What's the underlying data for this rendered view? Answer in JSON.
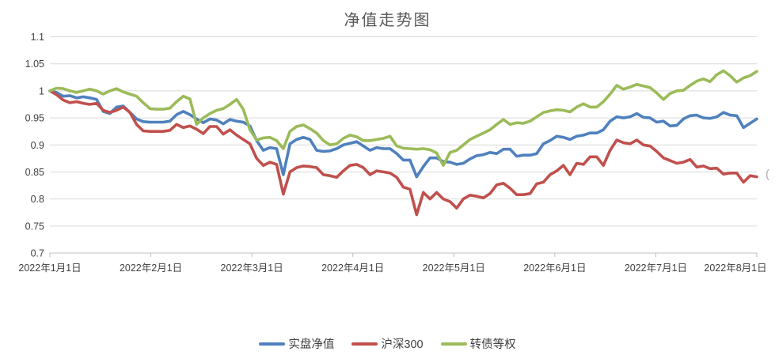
{
  "title": "净值走势图",
  "edge_artifact": "(",
  "colors": {
    "background": "#FFFFFF",
    "title_text": "#595959",
    "axis_text": "#404040",
    "gridline": "#D9D9D9",
    "axis_line": "#BFBFBF",
    "series_blue": "#4F81BD",
    "series_red": "#C0504D",
    "series_green": "#9BBB59"
  },
  "chart_data": {
    "type": "line",
    "title": "净值走势图",
    "xlabel": "",
    "ylabel": "",
    "x_description": "交易日净值, 2022年1月1日 至 2022年8月1日, 每序列107个采样点(约每2天一点), 首尾均匀分布",
    "x_tick_labels": [
      "2022年1月1日",
      "2022年2月1日",
      "2022年3月1日",
      "2022年4月1日",
      "2022年5月1日",
      "2022年6月1日",
      "2022年7月1日",
      "2022年8月1日"
    ],
    "ylim": [
      0.7,
      1.1
    ],
    "y_ticks": [
      0.7,
      0.75,
      0.8,
      0.85,
      0.9,
      0.95,
      1.0,
      1.05,
      1.1
    ],
    "y_tick_labels": [
      "0.7",
      "0.75",
      "0.8",
      "0.85",
      "0.9",
      "0.95",
      "1",
      "1.05",
      "1.1"
    ],
    "grid": true,
    "legend_position": "bottom",
    "gridline_color": "#D9D9D9",
    "axis_line_color": "#BFBFBF",
    "axis_text_color": "#404040",
    "series": [
      {
        "name": "实盘净值",
        "id": "shipan-networth",
        "color": "#4F81BD",
        "values": [
          1.0,
          0.997,
          0.99,
          0.991,
          0.987,
          0.989,
          0.987,
          0.984,
          0.962,
          0.958,
          0.97,
          0.972,
          0.96,
          0.948,
          0.943,
          0.942,
          0.942,
          0.942,
          0.944,
          0.956,
          0.962,
          0.956,
          0.948,
          0.941,
          0.948,
          0.946,
          0.939,
          0.947,
          0.944,
          0.942,
          0.935,
          0.908,
          0.89,
          0.895,
          0.893,
          0.845,
          0.902,
          0.91,
          0.914,
          0.91,
          0.89,
          0.888,
          0.889,
          0.893,
          0.9,
          0.903,
          0.906,
          0.898,
          0.89,
          0.895,
          0.893,
          0.893,
          0.884,
          0.872,
          0.872,
          0.841,
          0.86,
          0.876,
          0.876,
          0.869,
          0.868,
          0.864,
          0.866,
          0.874,
          0.88,
          0.882,
          0.886,
          0.884,
          0.892,
          0.892,
          0.879,
          0.881,
          0.881,
          0.884,
          0.902,
          0.908,
          0.916,
          0.914,
          0.91,
          0.916,
          0.918,
          0.922,
          0.922,
          0.928,
          0.944,
          0.952,
          0.95,
          0.952,
          0.958,
          0.951,
          0.95,
          0.942,
          0.944,
          0.935,
          0.936,
          0.948,
          0.954,
          0.955,
          0.95,
          0.949,
          0.952,
          0.96,
          0.955,
          0.954,
          0.932,
          0.94,
          0.948
        ]
      },
      {
        "name": "沪深300",
        "id": "hs300",
        "color": "#C0504D",
        "values": [
          1.0,
          0.993,
          0.983,
          0.978,
          0.98,
          0.977,
          0.975,
          0.977,
          0.964,
          0.96,
          0.964,
          0.97,
          0.96,
          0.938,
          0.926,
          0.925,
          0.925,
          0.925,
          0.927,
          0.938,
          0.932,
          0.935,
          0.929,
          0.921,
          0.934,
          0.934,
          0.92,
          0.928,
          0.918,
          0.91,
          0.902,
          0.875,
          0.862,
          0.868,
          0.864,
          0.809,
          0.85,
          0.858,
          0.861,
          0.86,
          0.858,
          0.845,
          0.843,
          0.84,
          0.852,
          0.862,
          0.864,
          0.858,
          0.845,
          0.852,
          0.85,
          0.848,
          0.84,
          0.822,
          0.818,
          0.771,
          0.812,
          0.8,
          0.812,
          0.8,
          0.795,
          0.783,
          0.8,
          0.807,
          0.805,
          0.802,
          0.81,
          0.826,
          0.829,
          0.82,
          0.808,
          0.808,
          0.81,
          0.828,
          0.831,
          0.845,
          0.852,
          0.862,
          0.845,
          0.866,
          0.864,
          0.878,
          0.878,
          0.862,
          0.89,
          0.909,
          0.904,
          0.902,
          0.909,
          0.9,
          0.898,
          0.888,
          0.876,
          0.871,
          0.866,
          0.868,
          0.873,
          0.859,
          0.861,
          0.856,
          0.857,
          0.846,
          0.848,
          0.848,
          0.831,
          0.843,
          0.841
        ]
      },
      {
        "name": "转债等权",
        "id": "convertible-equal-weight",
        "color": "#9BBB59",
        "values": [
          1.0,
          1.005,
          1.004,
          1.0,
          0.997,
          1.0,
          1.003,
          1.0,
          0.994,
          1.0,
          1.004,
          0.998,
          0.994,
          0.99,
          0.978,
          0.967,
          0.966,
          0.966,
          0.968,
          0.98,
          0.99,
          0.985,
          0.938,
          0.95,
          0.958,
          0.964,
          0.967,
          0.975,
          0.984,
          0.966,
          0.928,
          0.909,
          0.913,
          0.914,
          0.908,
          0.893,
          0.925,
          0.934,
          0.937,
          0.93,
          0.922,
          0.908,
          0.9,
          0.902,
          0.912,
          0.918,
          0.915,
          0.908,
          0.908,
          0.91,
          0.912,
          0.916,
          0.898,
          0.894,
          0.893,
          0.892,
          0.893,
          0.891,
          0.885,
          0.862,
          0.886,
          0.89,
          0.9,
          0.91,
          0.916,
          0.922,
          0.928,
          0.938,
          0.947,
          0.938,
          0.941,
          0.94,
          0.944,
          0.952,
          0.96,
          0.963,
          0.965,
          0.964,
          0.961,
          0.97,
          0.976,
          0.97,
          0.97,
          0.98,
          0.994,
          1.01,
          1.003,
          1.007,
          1.012,
          1.009,
          1.006,
          0.996,
          0.984,
          0.995,
          1.0,
          1.001,
          1.01,
          1.018,
          1.022,
          1.017,
          1.03,
          1.037,
          1.028,
          1.016,
          1.024,
          1.028,
          1.036
        ]
      }
    ]
  },
  "legend": {
    "items": [
      {
        "label": "实盘净值"
      },
      {
        "label": "沪深300"
      },
      {
        "label": "转债等权"
      }
    ]
  }
}
